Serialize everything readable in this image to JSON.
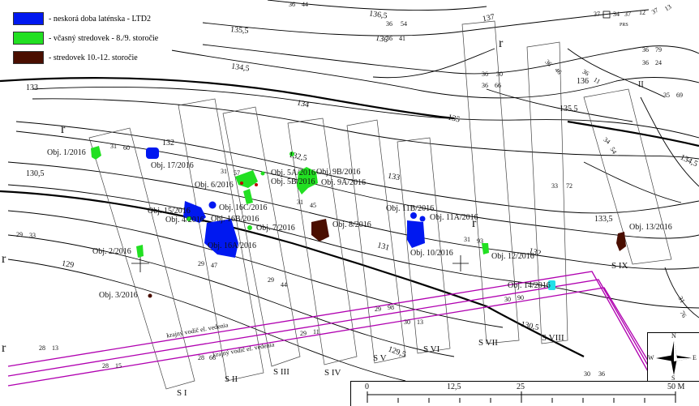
{
  "legend": {
    "items": [
      {
        "label": "- neskorá doba laténska - LTD2",
        "color": "#0018f0"
      },
      {
        "label": "- včasný stredovek - 8./9. storočie",
        "color": "#22e022"
      },
      {
        "label": "- stredovek 10.-12. storočie",
        "color": "#4a0e00"
      }
    ]
  },
  "contours": {
    "c136_5": "136,5",
    "c136": "136",
    "c135_5a": "135,5",
    "c135_5b": "135.5",
    "c134_5a": "134,5",
    "c134_5b": "134,5",
    "c134": "134",
    "c133a": "133",
    "c133b": "133",
    "c133_5": "133,5",
    "c132_5": "132,5",
    "c132a": "132",
    "c132b": "132",
    "c131": "131",
    "c130_5a": "130,5",
    "c130_5b": "130,5",
    "c129_5": "129,5",
    "c129": "129",
    "c135": "135",
    "c136r": "136",
    "c137": "137"
  },
  "regions": {
    "r1": "r",
    "r2": "r",
    "r3": "r",
    "r4": "r",
    "r5": "r"
  },
  "objects": {
    "o1": "Obj. 1/2016",
    "o2": "Obj. 2/2016",
    "o3": "Obj. 3/2016",
    "o4": "Obj. 4/2016",
    "o5a": "Obj. 5A/2016",
    "o5b": "Obj. 5B/2016",
    "o6": "Obj. 6/2016",
    "o7": "Obj. 7/2016",
    "o8": "Obj. 8/2016",
    "o9a": "Obj. 9A/2016",
    "o9b": "Obj. 9B/2016",
    "o10": "Obj. 10/2016",
    "o11a": "Obj. 11A/2016",
    "o11b": "Obj. 11B/2016",
    "o12": "Obj. 12/2016",
    "o13": "Obj. 13/2016",
    "o14": "Obj. 14/2016",
    "o15": "Obj. 15/2016",
    "o16a": "Obj. 16A/2016",
    "o16b": "Obj. 16B/2016",
    "o16c": "Obj. 16C/2016",
    "o17": "Obj. 17/2016"
  },
  "sections": {
    "s1": "S I",
    "s2": "S II",
    "s3": "S III",
    "s4": "S IV",
    "s5": "S V",
    "s6": "S VI",
    "s7": "S VII",
    "s8": "S VIII",
    "s9": "S IX"
  },
  "grid_numbers": {
    "g1": "31",
    "g2": "60",
    "g3": "31",
    "g4": "57",
    "g5": "31",
    "g6": "45",
    "g7": "29",
    "g8": "33",
    "g9": "29",
    "g10": "47",
    "g11": "29",
    "g12": "44",
    "g13": "31",
    "g14": "93",
    "g15": "33",
    "g16": "72",
    "g17": "36",
    "g18": "54",
    "g19": "36",
    "g20": "41",
    "g21": "36",
    "g22": "30",
    "g23": "36",
    "g24": "66",
    "g25": "36",
    "g26": "46",
    "g27": "36",
    "g28": "11",
    "g29": "36",
    "g30": "79",
    "g31": "36",
    "g32": "24",
    "g33": "35",
    "g34": "69",
    "g35": "34",
    "g36": "54",
    "g37": "30",
    "g38": "13",
    "g39": "28",
    "g40": "13",
    "g41": "28",
    "g42": "15",
    "g43": "28",
    "g44": "66",
    "g45": "29",
    "g46": "11",
    "g47": "30",
    "g48": "90",
    "g49": "30",
    "g50": "36",
    "g51": "37",
    "g52": "34",
    "g53": "37",
    "g54": "12",
    "g55": "37",
    "g56": "13",
    "g57": "36",
    "g58": "44",
    "g59": "29",
    "g60": "98",
    "g61": "II",
    "g62": "31",
    "g63": "76",
    "g64": "PRS"
  },
  "power_lines": {
    "p1": "krajný vodič el. vedenia",
    "p2": "krajný vodič el. vedenia"
  },
  "scale": {
    "t0": "0",
    "t1": "12,5",
    "t2": "25",
    "t3": "50 M"
  },
  "compass": {
    "n": "N",
    "s": "S",
    "e": "E",
    "w": "W"
  }
}
